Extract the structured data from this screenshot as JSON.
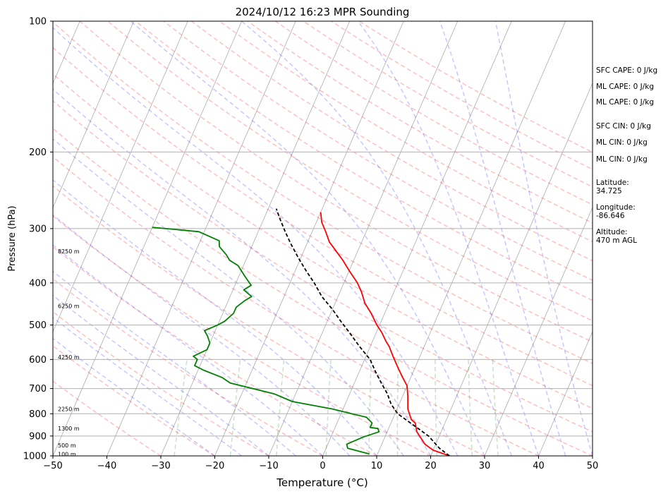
{
  "chart_data": {
    "type": "line",
    "title": "2024/10/12 16:23 MPR Sounding",
    "xlabel": "Temperature (°C)",
    "ylabel": "Pressure (hPa)",
    "xlim": [
      -50,
      50
    ],
    "ylim": [
      1000,
      100
    ],
    "y_scale": "log",
    "x_ticks": [
      -50,
      -40,
      -30,
      -20,
      -10,
      0,
      10,
      20,
      30,
      40,
      50
    ],
    "y_ticks": [
      1000,
      900,
      800,
      700,
      600,
      500,
      400,
      300,
      200,
      100
    ],
    "grid": true,
    "skew": true,
    "series": [
      {
        "role": "temperature",
        "color": "#ff0000",
        "points": [
          [
            23.5,
            1000
          ],
          [
            20,
            970
          ],
          [
            18,
            940
          ],
          [
            15.5,
            880
          ],
          [
            14.5,
            840
          ],
          [
            13.5,
            825
          ],
          [
            12,
            780
          ],
          [
            11,
            730
          ],
          [
            10,
            690
          ],
          [
            8.5,
            660
          ],
          [
            7,
            630
          ],
          [
            5,
            590
          ],
          [
            3.5,
            560
          ],
          [
            2.5,
            545
          ],
          [
            1,
            520
          ],
          [
            -0.5,
            500
          ],
          [
            -2.5,
            470
          ],
          [
            -4.5,
            445
          ],
          [
            -6,
            420
          ],
          [
            -7.5,
            400
          ],
          [
            -10,
            375
          ],
          [
            -12,
            355
          ],
          [
            -14,
            338
          ],
          [
            -16,
            322
          ],
          [
            -17.5,
            305
          ],
          [
            -19,
            290
          ],
          [
            -20,
            275
          ]
        ]
      },
      {
        "role": "dewpoint",
        "color": "#008000",
        "points": [
          [
            8.5,
            990
          ],
          [
            4,
            960
          ],
          [
            3.5,
            940
          ],
          [
            6,
            905
          ],
          [
            8.5,
            880
          ],
          [
            8,
            865
          ],
          [
            6.5,
            860
          ],
          [
            6.5,
            840
          ],
          [
            5,
            815
          ],
          [
            -2,
            780
          ],
          [
            -10,
            750
          ],
          [
            -14,
            720
          ],
          [
            -23,
            680
          ],
          [
            -25,
            660
          ],
          [
            -29,
            635
          ],
          [
            -31,
            620
          ],
          [
            -31,
            600
          ],
          [
            -32,
            590
          ],
          [
            -30,
            570
          ],
          [
            -30,
            550
          ],
          [
            -31,
            530
          ],
          [
            -32,
            515
          ],
          [
            -30,
            500
          ],
          [
            -29,
            490
          ],
          [
            -28,
            470
          ],
          [
            -28,
            455
          ],
          [
            -27,
            440
          ],
          [
            -26,
            430
          ],
          [
            -28,
            415
          ],
          [
            -27,
            405
          ],
          [
            -28,
            395
          ],
          [
            -29,
            385
          ],
          [
            -30,
            375
          ],
          [
            -31,
            365
          ],
          [
            -33,
            355
          ],
          [
            -34,
            345
          ],
          [
            -36,
            330
          ],
          [
            -36.5,
            320
          ],
          [
            -41,
            305
          ],
          [
            -50,
            298
          ]
        ]
      },
      {
        "role": "parcel",
        "color": "#000000",
        "dashed": true,
        "points": [
          [
            23.5,
            1000
          ],
          [
            21,
            960
          ],
          [
            18,
            900
          ],
          [
            10.5,
            800
          ],
          [
            8.5,
            760
          ],
          [
            7,
            720
          ],
          [
            5,
            680
          ],
          [
            3,
            640
          ],
          [
            1,
            600
          ],
          [
            -2,
            560
          ],
          [
            -5,
            520
          ],
          [
            -7.5,
            490
          ],
          [
            -10,
            460
          ],
          [
            -13,
            430
          ],
          [
            -15.5,
            400
          ],
          [
            -18,
            375
          ],
          [
            -20.5,
            350
          ],
          [
            -23,
            325
          ],
          [
            -25,
            305
          ],
          [
            -27,
            285
          ],
          [
            -28.5,
            270
          ]
        ]
      }
    ],
    "height_labels": [
      {
        "text": "100 m",
        "p": 990
      },
      {
        "text": "500 m",
        "p": 945
      },
      {
        "text": "1300 m",
        "p": 865
      },
      {
        "text": "2250 m",
        "p": 780
      },
      {
        "text": "4250 m",
        "p": 592
      },
      {
        "text": "6250 m",
        "p": 452
      },
      {
        "text": "8250 m",
        "p": 338
      }
    ],
    "background_lines": {
      "isotherms": "gray",
      "dry_adiabats": "#ff0000",
      "moist_adiabats": "#0000ff",
      "mixing_ratio": "#008000"
    }
  },
  "side_info": [
    "SFC CAPE: 0 J/kg",
    "ML CAPE: 0 J/kg",
    "ML CAPE: 0 J/kg",
    "SFC CIN: 0 J/kg",
    "ML CIN: 0 J/kg",
    "ML CIN: 0 J/kg",
    "Latitude:",
    "34.725",
    "Longitude:",
    "-86.646",
    "Altitude:",
    "470 m AGL"
  ]
}
